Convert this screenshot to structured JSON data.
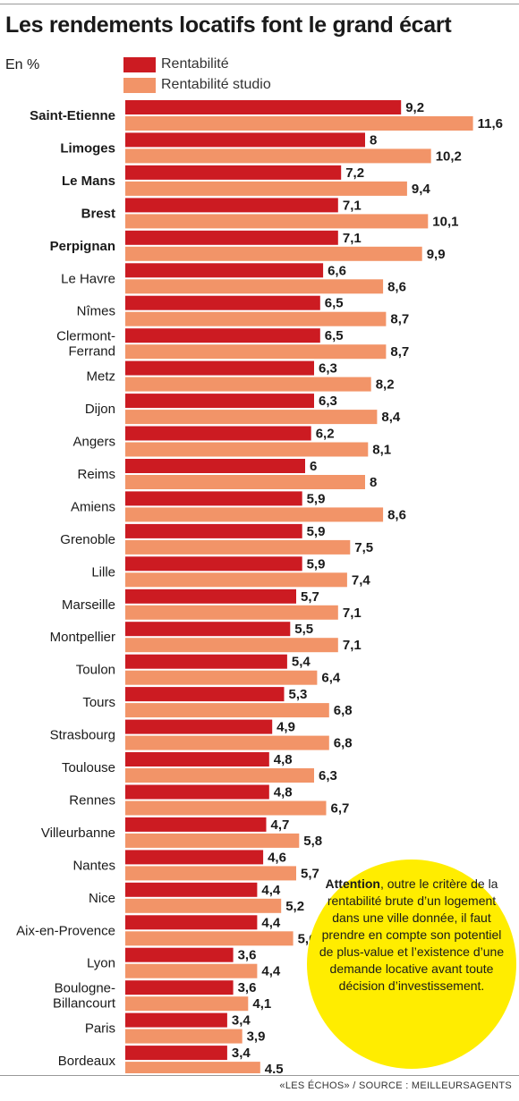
{
  "header": {
    "title": "Les rendements locatifs font le grand écart",
    "unit": "En %"
  },
  "legend": {
    "series1": "Rentabilité",
    "series2": "Rentabilité studio"
  },
  "colors": {
    "series1": "#cc1b22",
    "series2": "#f29468",
    "note_bg": "#ffed00"
  },
  "note": {
    "bold": "Attention",
    "text": ", outre le critère de la rentabilité brute d’un logement dans une ville donnée, il faut prendre en compte son potentiel de plus-value et l’existence d’une demande locative avant toute décision d’investissement."
  },
  "footer": {
    "source": "«LES ÉCHOS» / SOURCE : MEILLEURSAGENTS"
  },
  "chart_data": {
    "type": "bar",
    "orientation": "horizontal",
    "unit": "%",
    "categories": [
      [
        "Saint-Etienne"
      ],
      [
        "Limoges"
      ],
      [
        "Le Mans"
      ],
      [
        "Brest"
      ],
      [
        "Perpignan"
      ],
      [
        "Le Havre"
      ],
      [
        "Nîmes"
      ],
      [
        "Clermont-",
        "Ferrand"
      ],
      [
        "Metz"
      ],
      [
        "Dijon"
      ],
      [
        "Angers"
      ],
      [
        "Reims"
      ],
      [
        "Amiens"
      ],
      [
        "Grenoble"
      ],
      [
        "Lille"
      ],
      [
        "Marseille"
      ],
      [
        "Montpellier"
      ],
      [
        "Toulon"
      ],
      [
        "Tours"
      ],
      [
        "Strasbourg"
      ],
      [
        "Toulouse"
      ],
      [
        "Rennes"
      ],
      [
        "Villeurbanne"
      ],
      [
        "Nantes"
      ],
      [
        "Nice"
      ],
      [
        "Aix-en-Provence"
      ],
      [
        "Lyon"
      ],
      [
        "Boulogne-",
        "Billancourt"
      ],
      [
        "Paris"
      ],
      [
        "Bordeaux"
      ]
    ],
    "bold_categories": [
      "Saint-Etienne",
      "Limoges",
      "Le Mans",
      "Brest",
      "Perpignan"
    ],
    "series": [
      {
        "name": "Rentabilité",
        "values": [
          9.2,
          8,
          7.2,
          7.1,
          7.1,
          6.6,
          6.5,
          6.5,
          6.3,
          6.3,
          6.2,
          6,
          5.9,
          5.9,
          5.9,
          5.7,
          5.5,
          5.4,
          5.3,
          4.9,
          4.8,
          4.8,
          4.7,
          4.6,
          4.4,
          4.4,
          3.6,
          3.6,
          3.4,
          3.4
        ]
      },
      {
        "name": "Rentabilité studio",
        "values": [
          11.6,
          10.2,
          9.4,
          10.1,
          9.9,
          8.6,
          8.7,
          8.7,
          8.2,
          8.4,
          8.1,
          8,
          8.6,
          7.5,
          7.4,
          7.1,
          7.1,
          6.4,
          6.8,
          6.8,
          6.3,
          6.7,
          5.8,
          5.7,
          5.2,
          5.6,
          4.4,
          4.1,
          3.9,
          4.5
        ]
      }
    ],
    "decimal_separator": ",",
    "grid": false,
    "legend_position": "top-left"
  }
}
